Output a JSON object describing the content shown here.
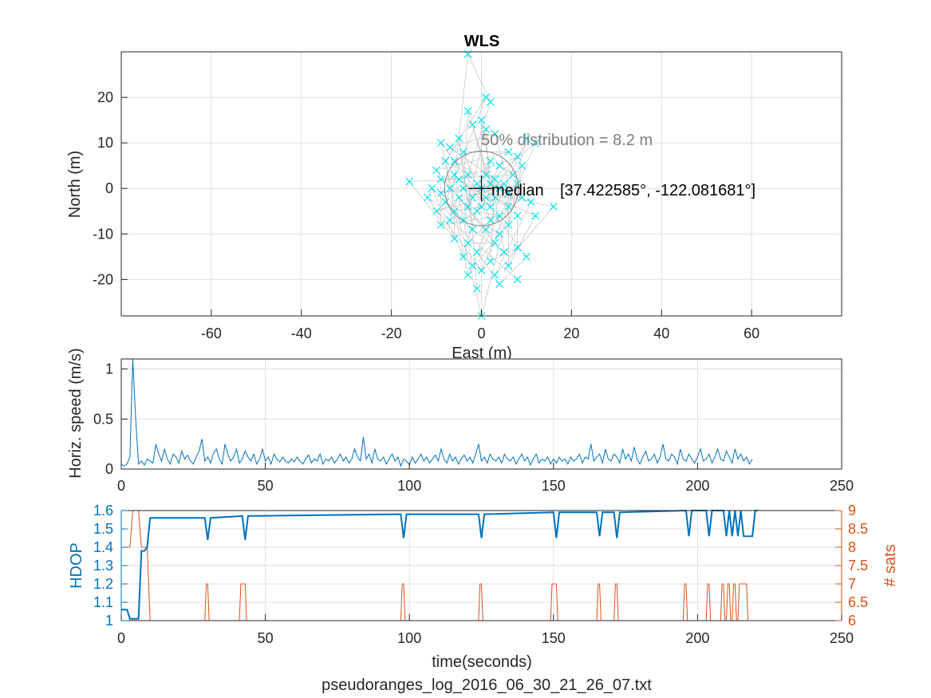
{
  "figure": {
    "title": "WLS",
    "footer": "pseudoranges_log_2016_06_30_21_26_07.txt"
  },
  "colors": {
    "scatter": "#00e5ee",
    "track": "#c8c8c8",
    "speed": "#0072bd",
    "hdop": "#0072bd",
    "sats": "#d95319",
    "circle": "#7f7f7f",
    "axes": "#262626",
    "grid": "#dfdfdf"
  },
  "chart_data": [
    {
      "type": "scatter",
      "name": "position",
      "title": "WLS",
      "xlabel": "East (m)",
      "ylabel": "North (m)",
      "xlim": [
        -80,
        80
      ],
      "ylim": [
        -28,
        30
      ],
      "xticks": [
        -60,
        -40,
        -20,
        0,
        20,
        40,
        60
      ],
      "yticks": [
        -20,
        -10,
        0,
        10,
        20
      ],
      "grid": true,
      "marker": "x",
      "circle_radius_m": 8.2,
      "median_label": "median",
      "coords_label": "[37.422585°, -122.081681°]",
      "distribution_label": "50% distribution = 8.2 m",
      "points": [
        [
          -3,
          29.5
        ],
        [
          0,
          -28
        ],
        [
          1,
          20
        ],
        [
          2,
          19
        ],
        [
          -3,
          17
        ],
        [
          0,
          15
        ],
        [
          -2,
          14
        ],
        [
          1,
          13
        ],
        [
          3,
          12
        ],
        [
          -5,
          11
        ],
        [
          10,
          11
        ],
        [
          12,
          10
        ],
        [
          -9,
          10
        ],
        [
          -7,
          9
        ],
        [
          -4,
          8
        ],
        [
          6,
          8
        ],
        [
          8,
          7
        ],
        [
          -8,
          6
        ],
        [
          -6,
          6
        ],
        [
          2,
          6
        ],
        [
          4,
          5
        ],
        [
          9,
          5
        ],
        [
          -10,
          4
        ],
        [
          -6,
          3
        ],
        [
          -3,
          3
        ],
        [
          1,
          3
        ],
        [
          3,
          2
        ],
        [
          7,
          3
        ],
        [
          -9,
          2
        ],
        [
          -5,
          2
        ],
        [
          -1,
          1
        ],
        [
          2,
          1
        ],
        [
          5,
          1
        ],
        [
          8,
          1
        ],
        [
          -16,
          1.5
        ],
        [
          -11,
          0
        ],
        [
          -7,
          0
        ],
        [
          -4,
          0
        ],
        [
          0,
          0
        ],
        [
          4,
          0
        ],
        [
          6,
          -1
        ],
        [
          -9,
          -1
        ],
        [
          -5,
          -2
        ],
        [
          -2,
          -2
        ],
        [
          1,
          -2
        ],
        [
          3,
          -2
        ],
        [
          9,
          -2
        ],
        [
          -12,
          -2
        ],
        [
          11,
          -3
        ],
        [
          -8,
          -3
        ],
        [
          -3,
          -4
        ],
        [
          0,
          -4
        ],
        [
          2,
          -4
        ],
        [
          6,
          -4
        ],
        [
          16,
          -4
        ],
        [
          -10,
          -5
        ],
        [
          -6,
          -5
        ],
        [
          -1,
          -5
        ],
        [
          4,
          -6
        ],
        [
          8,
          -6
        ],
        [
          12,
          -6
        ],
        [
          -7,
          -7
        ],
        [
          -4,
          -7
        ],
        [
          2,
          -7
        ],
        [
          6,
          -8
        ],
        [
          -9,
          -8
        ],
        [
          -2,
          -9
        ],
        [
          1,
          -9
        ],
        [
          4,
          -10
        ],
        [
          -6,
          -11
        ],
        [
          -3,
          -12
        ],
        [
          3,
          -12
        ],
        [
          8,
          -13
        ],
        [
          -1,
          -14
        ],
        [
          5,
          -14
        ],
        [
          10,
          -15
        ],
        [
          -4,
          -15
        ],
        [
          2,
          -16
        ],
        [
          -2,
          -17
        ],
        [
          6,
          -17
        ],
        [
          0,
          -18
        ],
        [
          3,
          -19
        ],
        [
          8,
          -20
        ],
        [
          -3,
          -19
        ],
        [
          4,
          -21
        ],
        [
          -1,
          -22
        ]
      ]
    },
    {
      "type": "line",
      "name": "horizontal speed",
      "xlabel": "",
      "ylabel": "Horiz. speed (m/s)",
      "xlim": [
        0,
        250
      ],
      "ylim": [
        0,
        1.1
      ],
      "xticks": [
        0,
        50,
        100,
        150,
        200,
        250
      ],
      "yticks": [
        0,
        0.5,
        1
      ],
      "grid": true,
      "x_start": 0,
      "x_step": 1,
      "values": [
        0.05,
        0.03,
        0.05,
        0.12,
        1.1,
        0.5,
        0.05,
        0.08,
        0.04,
        0.1,
        0.08,
        0.06,
        0.25,
        0.15,
        0.08,
        0.2,
        0.1,
        0.05,
        0.15,
        0.12,
        0.06,
        0.18,
        0.1,
        0.14,
        0.08,
        0.05,
        0.12,
        0.18,
        0.3,
        0.08,
        0.12,
        0.06,
        0.16,
        0.2,
        0.1,
        0.05,
        0.25,
        0.15,
        0.08,
        0.12,
        0.2,
        0.06,
        0.1,
        0.18,
        0.12,
        0.08,
        0.15,
        0.05,
        0.1,
        0.2,
        0.08,
        0.12,
        0.05,
        0.15,
        0.1,
        0.07,
        0.12,
        0.08,
        0.06,
        0.1,
        0.07,
        0.12,
        0.08,
        0.05,
        0.1,
        0.14,
        0.06,
        0.1,
        0.08,
        0.15,
        0.05,
        0.1,
        0.08,
        0.12,
        0.06,
        0.1,
        0.15,
        0.08,
        0.12,
        0.06,
        0.1,
        0.2,
        0.12,
        0.08,
        0.32,
        0.1,
        0.15,
        0.06,
        0.2,
        0.1,
        0.08,
        0.12,
        0.05,
        0.1,
        0.15,
        0.08,
        0.12,
        0.03,
        0.1,
        0.08,
        0.04,
        0.12,
        0.06,
        0.1,
        0.15,
        0.08,
        0.12,
        0.06,
        0.1,
        0.14,
        0.08,
        0.2,
        0.1,
        0.06,
        0.15,
        0.08,
        0.12,
        0.05,
        0.1,
        0.14,
        0.08,
        0.12,
        0.06,
        0.15,
        0.25,
        0.08,
        0.12,
        0.06,
        0.15,
        0.1,
        0.08,
        0.12,
        0.06,
        0.15,
        0.1,
        0.08,
        0.12,
        0.05,
        0.1,
        0.15,
        0.08,
        0.12,
        0.04,
        0.1,
        0.15,
        0.06,
        0.1,
        0.08,
        0.12,
        0.05,
        0.1,
        0.06,
        0.12,
        0.08,
        0.1,
        0.05,
        0.12,
        0.08,
        0.1,
        0.15,
        0.06,
        0.12,
        0.1,
        0.25,
        0.08,
        0.12,
        0.15,
        0.06,
        0.2,
        0.1,
        0.08,
        0.15,
        0.12,
        0.06,
        0.2,
        0.1,
        0.15,
        0.08,
        0.22,
        0.1,
        0.05,
        0.12,
        0.18,
        0.08,
        0.1,
        0.15,
        0.06,
        0.12,
        0.25,
        0.1,
        0.08,
        0.15,
        0.12,
        0.05,
        0.2,
        0.1,
        0.08,
        0.15,
        0.1,
        0.06,
        0.12,
        0.2,
        0.08,
        0.1,
        0.15,
        0.06,
        0.12,
        0.2,
        0.1,
        0.08,
        0.18,
        0.12,
        0.06,
        0.2,
        0.1,
        0.15,
        0.08,
        0.12,
        0.05,
        0.1
      ]
    },
    {
      "type": "line",
      "name": "HDOP and satellite count",
      "xlabel": "time(seconds)",
      "ylabel": "HDOP",
      "ylabel_right": "# sats",
      "xlim": [
        0,
        250
      ],
      "ylim": [
        1,
        1.6
      ],
      "ylim_right": [
        6,
        9
      ],
      "xticks": [
        0,
        50,
        100,
        150,
        200,
        250
      ],
      "yticks": [
        1,
        1.1,
        1.2,
        1.3,
        1.4,
        1.5,
        1.6
      ],
      "yticks_right": [
        6,
        6.5,
        7,
        7.5,
        8,
        8.5,
        9
      ],
      "grid": true,
      "series": [
        {
          "name": "HDOP",
          "axis": "left",
          "x": [
            0,
            2,
            3,
            4,
            6,
            7,
            8,
            9,
            10,
            29,
            30,
            31,
            42,
            43,
            44,
            97,
            98,
            99,
            124,
            125,
            126,
            150,
            151,
            152,
            165,
            166,
            167,
            171,
            172,
            173,
            196,
            197,
            198,
            203,
            204,
            205,
            209,
            210,
            211,
            212,
            213,
            214,
            215,
            216,
            219,
            220,
            221
          ],
          "y": [
            1.06,
            1.06,
            1.01,
            1.01,
            1.01,
            1.38,
            1.38,
            1.4,
            1.56,
            1.56,
            1.44,
            1.56,
            1.57,
            1.44,
            1.57,
            1.58,
            1.45,
            1.58,
            1.58,
            1.45,
            1.58,
            1.59,
            1.45,
            1.59,
            1.59,
            1.46,
            1.59,
            1.59,
            1.45,
            1.59,
            1.6,
            1.46,
            1.6,
            1.6,
            1.46,
            1.6,
            1.6,
            1.46,
            1.6,
            1.46,
            1.6,
            1.46,
            1.6,
            1.46,
            1.46,
            1.6,
            1.6
          ]
        },
        {
          "name": "# sats",
          "axis": "right",
          "x": [
            0,
            1,
            3,
            4,
            6,
            7,
            8,
            9,
            10,
            29,
            29.5,
            30,
            30.5,
            41,
            41.5,
            43,
            43.5,
            97,
            97.5,
            98,
            98.5,
            124,
            124.5,
            125,
            125.5,
            149,
            149.5,
            151,
            151.5,
            165,
            165.5,
            166,
            166.5,
            171,
            171.5,
            172,
            172.5,
            195,
            195.5,
            196,
            196.5,
            203,
            203.5,
            204,
            204.5,
            208,
            208.5,
            209,
            209.5,
            210,
            210.5,
            211,
            211.5,
            212,
            212.5,
            213,
            213.5,
            214,
            214.5,
            217,
            217.5,
            221
          ],
          "y": [
            8,
            8,
            8,
            9,
            9,
            8,
            8,
            8,
            6,
            6,
            7,
            7,
            6,
            6,
            7,
            7,
            6,
            6,
            7,
            7,
            6,
            6,
            7,
            7,
            6,
            6,
            7,
            7,
            6,
            6,
            7,
            7,
            6,
            6,
            7,
            7,
            6,
            6,
            7,
            7,
            6,
            6,
            7,
            7,
            6,
            6,
            7,
            7,
            6,
            6,
            7,
            7,
            6,
            6,
            7,
            7,
            6,
            6,
            7,
            7,
            6,
            6
          ]
        }
      ]
    }
  ]
}
